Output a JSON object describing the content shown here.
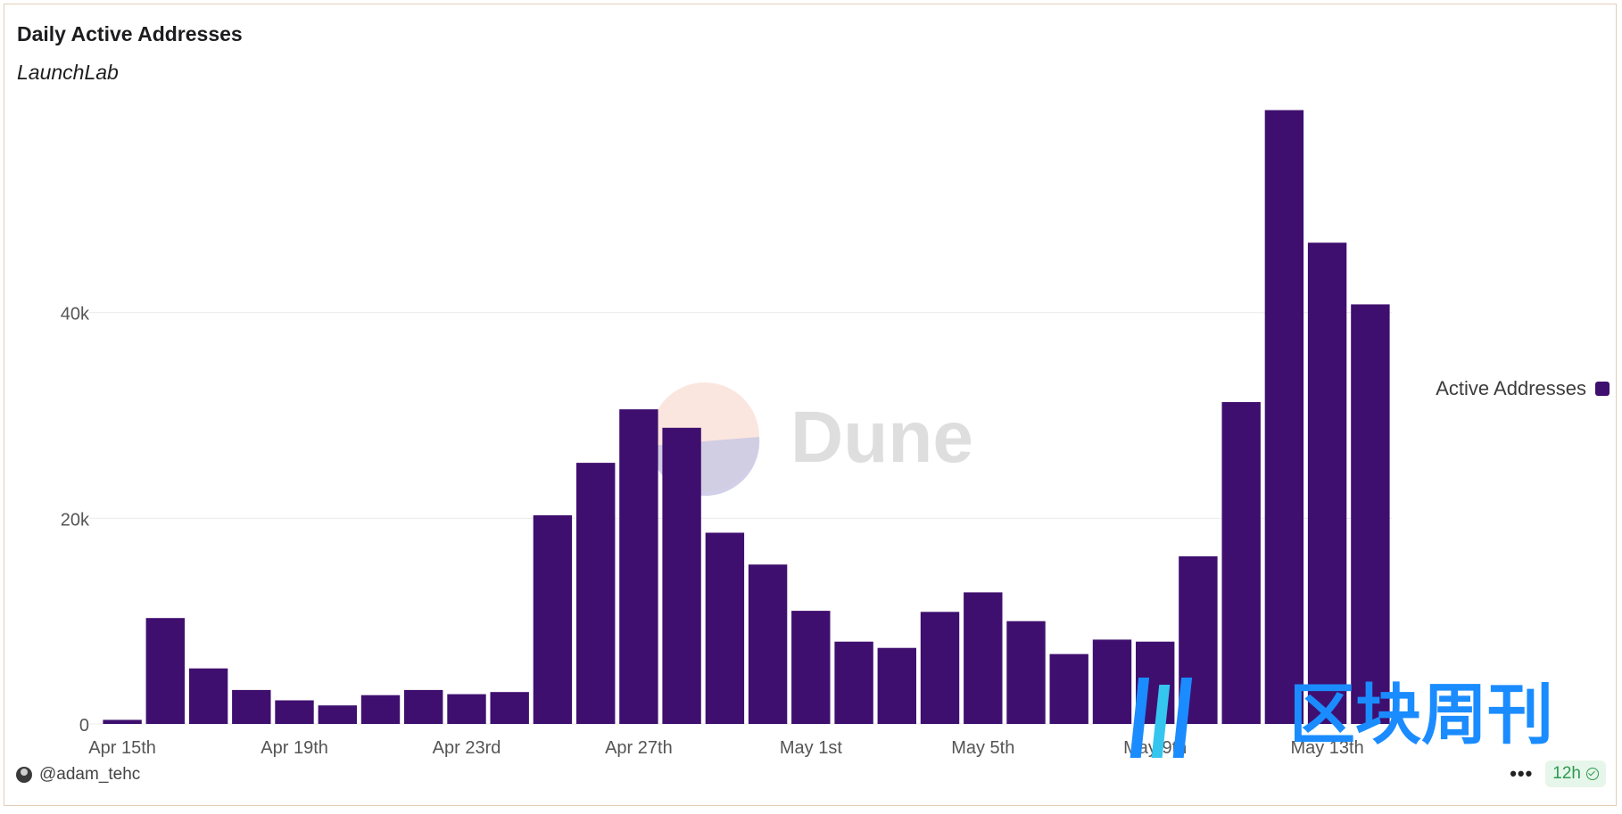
{
  "header": {
    "title": "Daily Active Addresses",
    "subtitle": "LaunchLab"
  },
  "watermarks": {
    "dune_text": "Dune",
    "cn_text": "区块周刊"
  },
  "footer": {
    "author": "@adam_tehc",
    "refresh_badge": "12h",
    "more_label": "•••"
  },
  "colors": {
    "bar": "#3f0f6f",
    "grid": "#ececec",
    "axis_text": "#555555",
    "watermark_blue": "#1a8cff"
  },
  "chart_data": {
    "type": "bar",
    "title": "Daily Active Addresses",
    "subtitle": "LaunchLab",
    "x": [
      "2025-04-15",
      "2025-04-16",
      "2025-04-17",
      "2025-04-18",
      "2025-04-19",
      "2025-04-20",
      "2025-04-21",
      "2025-04-22",
      "2025-04-23",
      "2025-04-24",
      "2025-04-25",
      "2025-04-26",
      "2025-04-27",
      "2025-04-28",
      "2025-04-29",
      "2025-04-30",
      "2025-05-01",
      "2025-05-02",
      "2025-05-03",
      "2025-05-04",
      "2025-05-05",
      "2025-05-06",
      "2025-05-07",
      "2025-05-08",
      "2025-05-09",
      "2025-05-10",
      "2025-05-11",
      "2025-05-12",
      "2025-05-13",
      "2025-05-14"
    ],
    "series": [
      {
        "name": "Active Addresses",
        "values": [
          400,
          10300,
          5400,
          3300,
          2300,
          1800,
          2800,
          3300,
          2900,
          3100,
          20300,
          25400,
          30600,
          28800,
          18600,
          15500,
          11000,
          8000,
          7400,
          10900,
          12800,
          10000,
          6800,
          8200,
          8000,
          16300,
          31300,
          59700,
          46800,
          40800
        ]
      }
    ],
    "x_ticks": [
      "Apr 15th",
      "Apr 19th",
      "Apr 23rd",
      "Apr 27th",
      "May 1st",
      "May 5th",
      "May 9th",
      "May 13th"
    ],
    "x_tick_index": [
      0,
      4,
      8,
      12,
      16,
      20,
      24,
      28
    ],
    "y_ticks": [
      0,
      20000,
      40000
    ],
    "y_tick_labels": [
      "0",
      "20k",
      "40k"
    ],
    "ylim": [
      0,
      60000
    ],
    "xlabel": "",
    "ylabel": "",
    "grid": true,
    "legend": {
      "position": "right",
      "entries": [
        "Active Addresses"
      ]
    }
  }
}
